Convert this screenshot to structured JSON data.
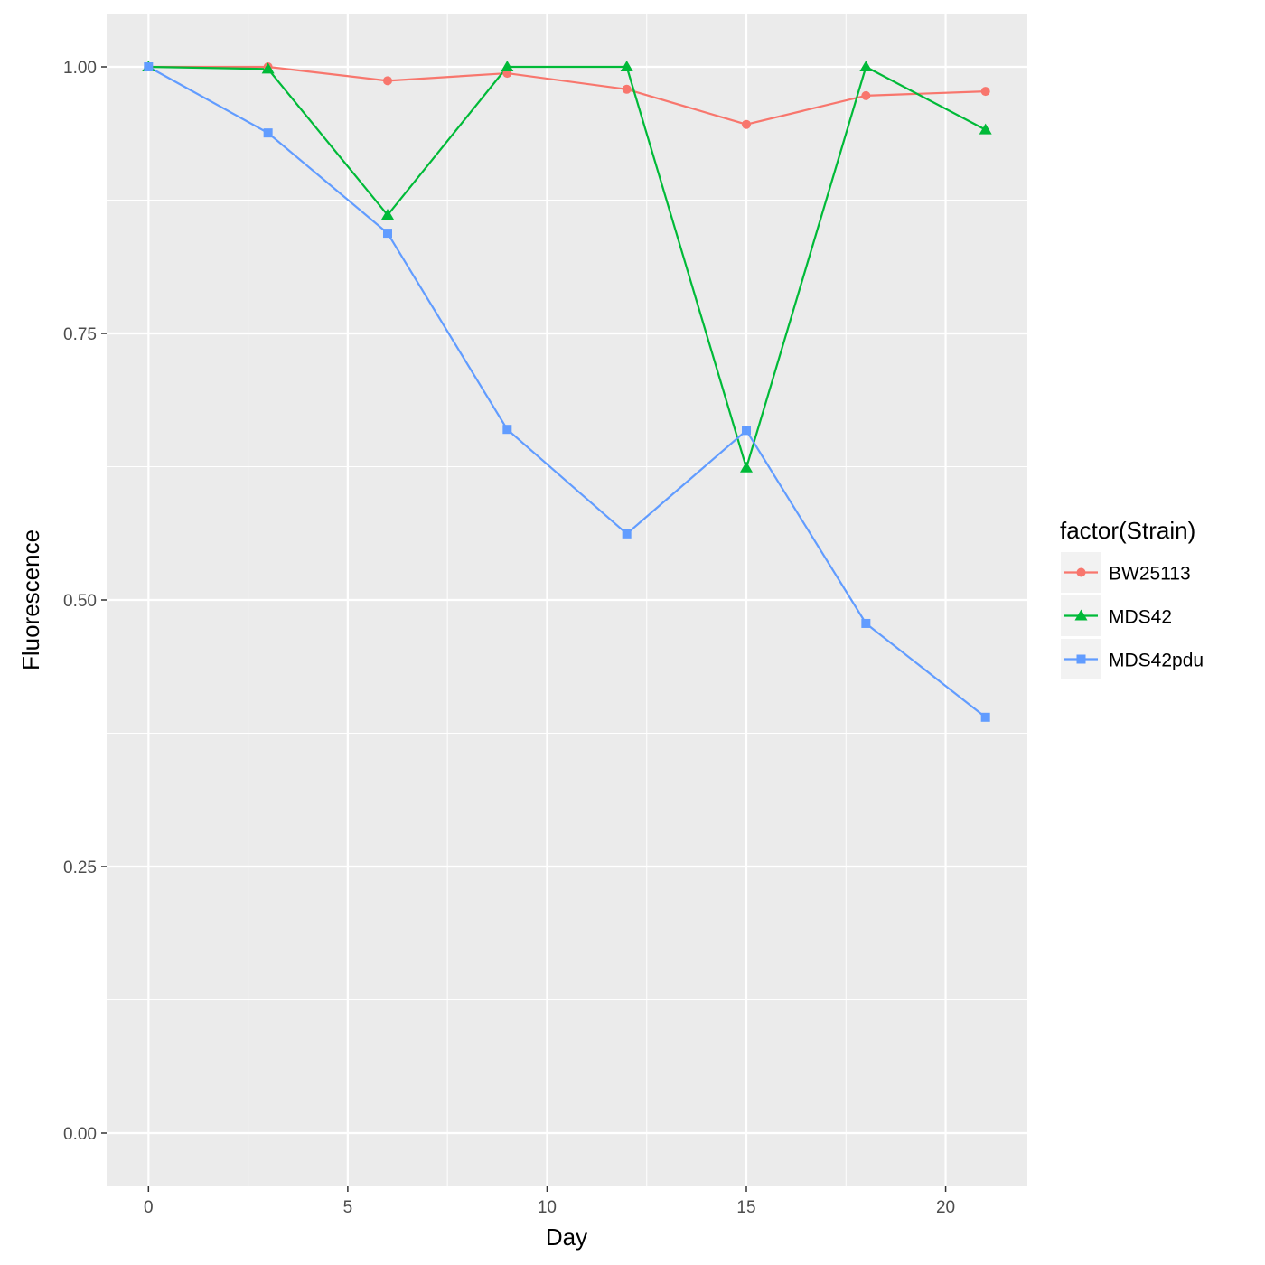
{
  "chart_data": {
    "type": "line",
    "title": "",
    "xlabel": "Day",
    "ylabel": "Fluorescence",
    "xlim": [
      -1.05,
      22.05
    ],
    "ylim": [
      -0.05,
      1.05
    ],
    "x_ticks": [
      0,
      5,
      10,
      15,
      20
    ],
    "x_tick_labels": [
      "0",
      "5",
      "10",
      "15",
      "20"
    ],
    "x_minor_ticks": [
      2.5,
      7.5,
      12.5,
      17.5
    ],
    "y_ticks": [
      0,
      0.25,
      0.5,
      0.75,
      1.0
    ],
    "y_tick_labels": [
      "0.00",
      "0.25",
      "0.50",
      "0.75",
      "1.00"
    ],
    "y_minor_ticks": [
      0.125,
      0.375,
      0.625,
      0.875
    ],
    "grid": true,
    "legend": {
      "title": "factor(Strain)",
      "placement": "right"
    },
    "x": [
      0,
      3,
      6,
      9,
      12,
      15,
      18,
      21
    ],
    "series": [
      {
        "name": "BW25113",
        "color": "#F8766D",
        "marker": "circle",
        "values": [
          1.0,
          1.0,
          0.987,
          0.994,
          0.979,
          0.946,
          0.973,
          0.977
        ]
      },
      {
        "name": "MDS42",
        "color": "#00BA38",
        "marker": "triangle",
        "values": [
          1.0,
          0.998,
          0.861,
          1.0,
          1.0,
          0.624,
          1.0,
          0.941
        ]
      },
      {
        "name": "MDS42pdu",
        "color": "#619CFF",
        "marker": "square",
        "values": [
          1.0,
          0.938,
          0.844,
          0.66,
          0.562,
          0.659,
          0.478,
          0.39
        ]
      }
    ],
    "colors": {
      "panel_bg": "#EBEBEB",
      "grid": "#FFFFFF",
      "legend_key_bg": "#F2F2F2"
    }
  }
}
